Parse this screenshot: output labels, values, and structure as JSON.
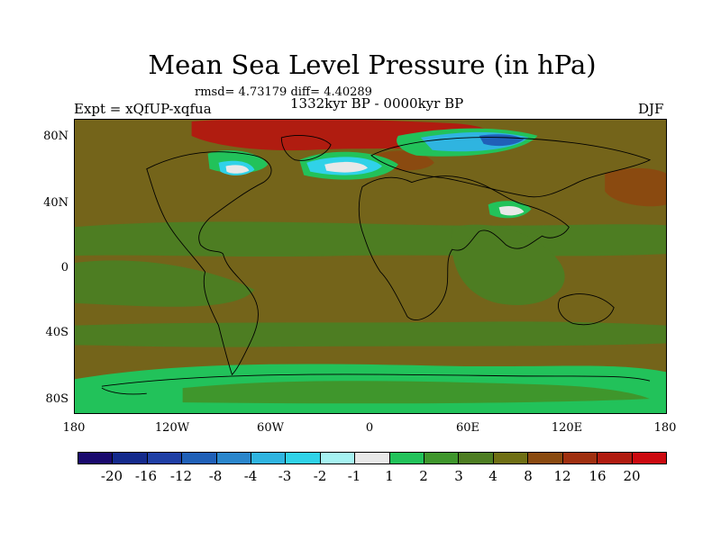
{
  "title": "Mean Sea Level Pressure (in hPa)",
  "stats": "rmsd= 4.73179 diff= 4.40289",
  "period": "1332kyr BP - 0000kyr BP",
  "experiment": "Expt = xQfUP-xqfua",
  "season": "DJF",
  "lat_ticks": [
    "80N",
    "40N",
    "0",
    "40S",
    "80S"
  ],
  "lon_ticks": [
    "180",
    "120W",
    "60W",
    "0",
    "60E",
    "120E",
    "180"
  ],
  "colorbar": {
    "labels": [
      "-20",
      "-16",
      "-12",
      "-8",
      "-4",
      "-3",
      "-2",
      "-1",
      "1",
      "2",
      "3",
      "4",
      "8",
      "12",
      "16",
      "20"
    ],
    "colors": [
      "#1a0a6e",
      "#142a8c",
      "#1f3fa5",
      "#2060b8",
      "#2a86cc",
      "#2fb4e0",
      "#30d2e8",
      "#a6f2f2",
      "#e8e8e8",
      "#22c25a",
      "#3f962c",
      "#4d7d22",
      "#6f6f14",
      "#8a4a10",
      "#a03010",
      "#b01c10",
      "#cc0a10"
    ]
  },
  "map": {
    "background_color": "#74641a",
    "regions": [
      {
        "name": "northern-tropics-band",
        "color": "#4d7d22"
      },
      {
        "name": "southern-ocean-band",
        "color": "#4d7d22"
      },
      {
        "name": "tropical-pacific",
        "color": "#4d7d22"
      },
      {
        "name": "indian-ocean",
        "color": "#4d7d22"
      },
      {
        "name": "north-pacific-high",
        "color": "#8a4a10"
      },
      {
        "name": "north-africa-high",
        "color": "#8a4a10"
      },
      {
        "name": "arctic-high",
        "color": "#b01c10"
      },
      {
        "name": "antarctica-anomaly",
        "color": "#22c25a"
      },
      {
        "name": "antarctica-inner",
        "color": "#3f962c"
      },
      {
        "name": "greenland-green",
        "color": "#22c25a"
      },
      {
        "name": "north-atlantic-low-green",
        "color": "#22c25a"
      },
      {
        "name": "north-atlantic-low",
        "color": "#30d2e8"
      },
      {
        "name": "north-atlantic-low-core",
        "color": "#e8e8e8"
      },
      {
        "name": "hudson-bay-low",
        "color": "#30d2e8"
      },
      {
        "name": "hudson-bay-core",
        "color": "#e8e8e8"
      },
      {
        "name": "siberia-low-green",
        "color": "#22c25a"
      },
      {
        "name": "siberia-low",
        "color": "#2fb4e0"
      },
      {
        "name": "siberia-low-core",
        "color": "#2060b8"
      },
      {
        "name": "tibet-low-green",
        "color": "#22c25a"
      },
      {
        "name": "tibet-low-core",
        "color": "#e8e8e8"
      }
    ]
  }
}
